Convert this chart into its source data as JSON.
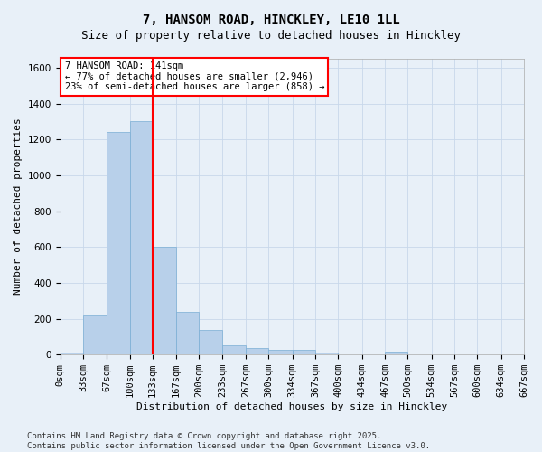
{
  "title": "7, HANSOM ROAD, HINCKLEY, LE10 1LL",
  "subtitle": "Size of property relative to detached houses in Hinckley",
  "xlabel": "Distribution of detached houses by size in Hinckley",
  "ylabel": "Number of detached properties",
  "bin_edges": [
    0,
    33,
    67,
    100,
    133,
    167,
    200,
    233,
    267,
    300,
    334,
    367,
    400,
    434,
    467,
    500,
    534,
    567,
    600,
    634,
    667
  ],
  "bar_heights": [
    10,
    220,
    1240,
    1300,
    600,
    240,
    135,
    50,
    35,
    25,
    25,
    10,
    0,
    0,
    15,
    0,
    0,
    0,
    0,
    0
  ],
  "bar_color": "#b8d0ea",
  "bar_edge_color": "#7aaed4",
  "grid_color": "#c8d8ea",
  "vline_x": 133,
  "vline_color": "red",
  "annotation_text": "7 HANSOM ROAD: 141sqm\n← 77% of detached houses are smaller (2,946)\n23% of semi-detached houses are larger (858) →",
  "annotation_box_color": "white",
  "annotation_box_edge_color": "red",
  "ylim": [
    0,
    1650
  ],
  "yticks": [
    0,
    200,
    400,
    600,
    800,
    1000,
    1200,
    1400,
    1600
  ],
  "footer_line1": "Contains HM Land Registry data © Crown copyright and database right 2025.",
  "footer_line2": "Contains public sector information licensed under the Open Government Licence v3.0.",
  "bg_color": "#e8f0f8",
  "plot_bg_color": "#e8f0f8",
  "title_fontsize": 10,
  "subtitle_fontsize": 9,
  "axis_label_fontsize": 8,
  "tick_fontsize": 7.5,
  "annotation_fontsize": 7.5,
  "footer_fontsize": 6.5
}
